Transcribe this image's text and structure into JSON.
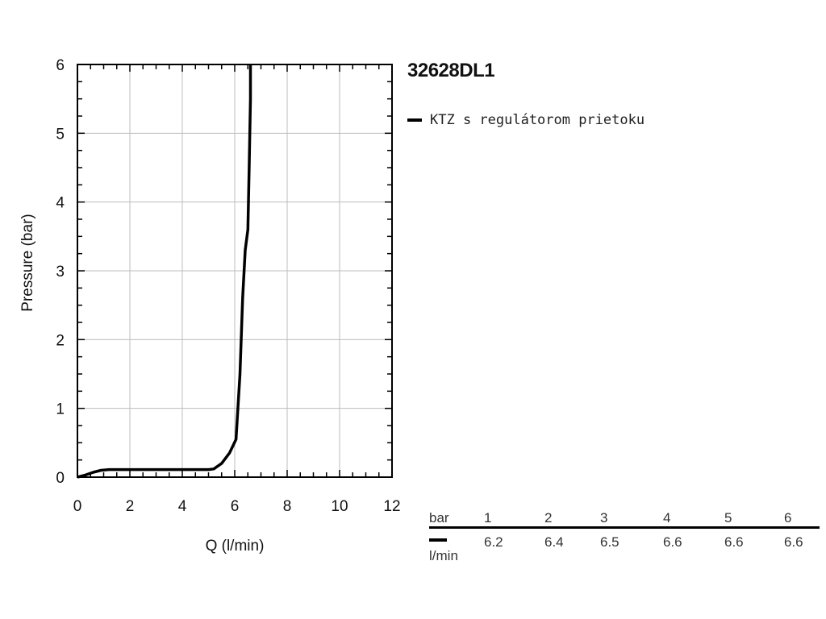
{
  "chart_data": {
    "type": "line",
    "title": "32628DL1",
    "xlabel": "Q (l/min)",
    "ylabel": "Pressure (bar)",
    "xlim": [
      0,
      12
    ],
    "ylim": [
      0,
      6
    ],
    "xticks": [
      0,
      2,
      4,
      6,
      8,
      10,
      12
    ],
    "yticks": [
      0,
      1,
      2,
      3,
      4,
      5,
      6
    ],
    "grid": true,
    "legend_position": "top-right",
    "series": [
      {
        "name": "KTZ s regulátorom prietoku",
        "color": "#000000",
        "x": [
          0,
          0.3,
          0.6,
          0.9,
          1.2,
          2,
          3,
          4,
          5,
          5.2,
          5.5,
          5.8,
          6.05,
          6.2,
          6.3,
          6.4,
          6.5,
          6.55,
          6.6,
          6.6
        ],
        "y": [
          0,
          0.03,
          0.07,
          0.1,
          0.11,
          0.11,
          0.11,
          0.11,
          0.11,
          0.12,
          0.2,
          0.35,
          0.55,
          1.5,
          2.6,
          3.3,
          3.6,
          4.5,
          5.5,
          6.0
        ]
      }
    ]
  },
  "table": {
    "unit_top": "bar",
    "unit_bottom": "l/min",
    "pressures": [
      "1",
      "2",
      "3",
      "4",
      "5",
      "6"
    ],
    "flows": [
      "6.2",
      "6.4",
      "6.5",
      "6.6",
      "6.6",
      "6.6"
    ]
  }
}
